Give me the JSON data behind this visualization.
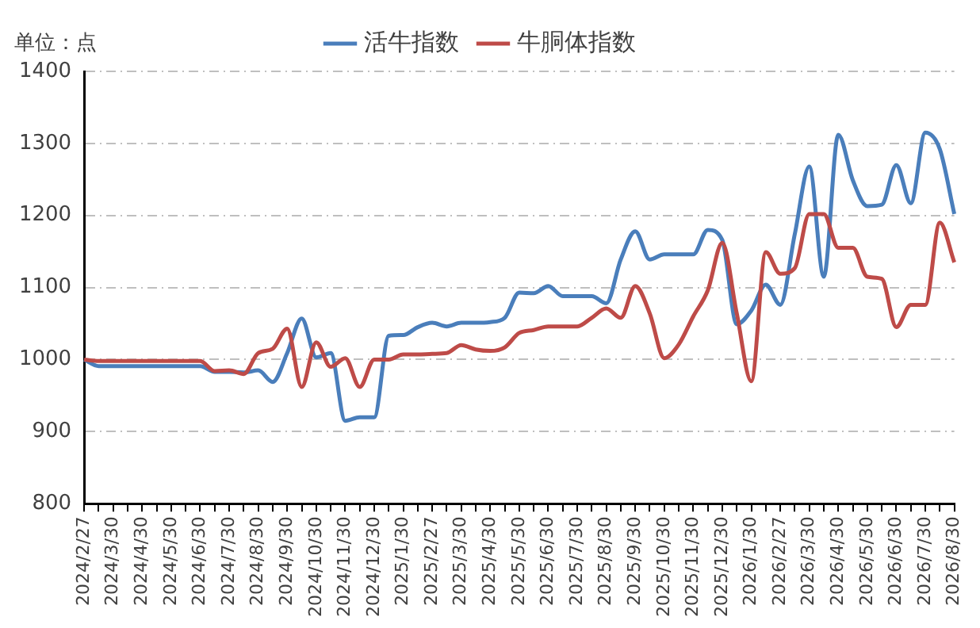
{
  "chart_data": {
    "type": "line",
    "annotations": [
      "单位：点"
    ],
    "categories": [
      "2024/2/27",
      null,
      "2024/3/30",
      null,
      "2024/4/30",
      null,
      "2024/5/30",
      null,
      "2024/6/30",
      null,
      "2024/7/30",
      null,
      "2024/8/30",
      null,
      "2024/9/30",
      null,
      "2024/10/30",
      null,
      "2024/11/30",
      null,
      "2024/12/30",
      null,
      "2025/1/30",
      null,
      "2025/2/27",
      null,
      "2025/3/30",
      null,
      "2025/4/30",
      null,
      "2025/5/30",
      null,
      "2025/6/30",
      null,
      "2025/7/30",
      null,
      "2025/8/30",
      null,
      "2025/9/30",
      null,
      "2025/10/30",
      null,
      "2025/11/30",
      null,
      "2025/12/30",
      null,
      "2026/1/30",
      null,
      "2026/2/27",
      null,
      "2026/3/30",
      null,
      "2026/4/30",
      null,
      "2026/5/30",
      null,
      "2026/6/30",
      null,
      "2026/7/30",
      null,
      "2026/8/30"
    ],
    "series": [
      {
        "name": "活牛指数",
        "color": "#4a7ebb",
        "values": [
          1000,
          991,
          991,
          991,
          991,
          991,
          991,
          991,
          991,
          983,
          983,
          982,
          985,
          969,
          1009,
          1057,
          1003,
          1009,
          915,
          920,
          920,
          1033,
          1034,
          1045,
          1051,
          1046,
          1051,
          1051,
          1052,
          1058,
          1093,
          1092,
          1102,
          1088,
          1088,
          1088,
          1078,
          1139,
          1178,
          1139,
          1146,
          1146,
          1146,
          1180,
          1166,
          1049,
          1068,
          1104,
          1076,
          1174,
          1268,
          1115,
          1312,
          1249,
          1213,
          1215,
          1270,
          1217,
          1315,
          1292,
          1202
        ]
      },
      {
        "name": "牛胴体指数",
        "color": "#be4b48",
        "values": [
          1000,
          998,
          998,
          998,
          998,
          998,
          998,
          998,
          998,
          984,
          985,
          980,
          1009,
          1015,
          1043,
          962,
          1024,
          990,
          1002,
          962,
          1000,
          1000,
          1007,
          1007,
          1008,
          1009,
          1020,
          1014,
          1012,
          1017,
          1037,
          1041,
          1046,
          1046,
          1046,
          1058,
          1071,
          1058,
          1102,
          1064,
          1002,
          1021,
          1060,
          1096,
          1162,
          1064,
          970,
          1149,
          1119,
          1127,
          1202,
          1202,
          1155,
          1155,
          1115,
          1112,
          1045,
          1076,
          1076,
          1190,
          1135
        ]
      }
    ],
    "ylim": [
      800,
      1400
    ],
    "yticks": [
      800,
      900,
      1000,
      1100,
      1200,
      1300,
      1400
    ],
    "grid": "y",
    "legend": "top",
    "marker": "none",
    "line_style": "solid"
  }
}
